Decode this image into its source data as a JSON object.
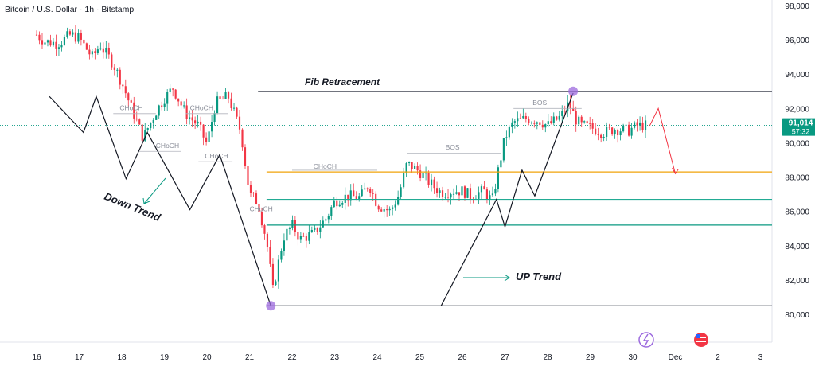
{
  "header": {
    "title": "Bitcoin / U.S. Dollar · 1h · Bitstamp"
  },
  "price_axis": {
    "ticks": [
      "98,000",
      "96,000",
      "94,000",
      "92,000",
      "90,000",
      "88,000",
      "86,000",
      "84,000",
      "82,000",
      "80,000"
    ],
    "last_price": "91,014",
    "countdown": "57:32",
    "last_price_color": "#089981"
  },
  "time_axis": {
    "ticks": [
      "16",
      "17",
      "18",
      "19",
      "20",
      "21",
      "22",
      "23",
      "24",
      "25",
      "26",
      "27",
      "28",
      "29",
      "30",
      "Dec",
      "2",
      "3"
    ]
  },
  "annotations": {
    "fib_label": "Fib Retracement",
    "down_label": "Down Trend",
    "up_label": "UP Trend",
    "choch": "CHoCH",
    "bos": "BOS"
  },
  "colors": {
    "up": "#089981",
    "down": "#f23645",
    "fib_gold": "#f0a30a",
    "fib_green": "#22ab94",
    "fib_teal": "#089981",
    "marker": "#9c6ade",
    "forecast": "#f23645"
  },
  "chart_data": {
    "type": "candlestick",
    "title": "Bitcoin / U.S. Dollar · 1h · Bitstamp",
    "x_range": [
      "Nov 16",
      "Dec 3"
    ],
    "ylim": [
      79000,
      98000
    ],
    "trend_zigzag": [
      {
        "date": "Nov 16.3",
        "price": 92700
      },
      {
        "date": "Nov 17.1",
        "price": 90600
      },
      {
        "date": "Nov 17.4",
        "price": 92700
      },
      {
        "date": "Nov 18.1",
        "price": 87900
      },
      {
        "date": "Nov 18.6",
        "price": 90600
      },
      {
        "date": "Nov 19.6",
        "price": 86100
      },
      {
        "date": "Nov 20.3",
        "price": 89300
      },
      {
        "date": "Nov 21.5",
        "price": 80500
      }
    ],
    "up_zigzag": [
      {
        "date": "Nov 25.5",
        "price": 80500
      },
      {
        "date": "Nov 26.8",
        "price": 86700
      },
      {
        "date": "Nov 27",
        "price": 85100
      },
      {
        "date": "Nov 27.4",
        "price": 88400
      },
      {
        "date": "Nov 27.7",
        "price": 86900
      },
      {
        "date": "Nov 28.6",
        "price": 92900
      }
    ],
    "fib_levels": [
      93000,
      88300,
      86700,
      85200,
      80500
    ],
    "marker_points": [
      {
        "date": "Nov 21.5",
        "price": 80500
      },
      {
        "date": "Nov 28.6",
        "price": 93000
      }
    ],
    "forecast_path": [
      {
        "date": "Nov 30.4",
        "price": 91000
      },
      {
        "date": "Nov 30.6",
        "price": 92000
      },
      {
        "date": "Dec 1",
        "price": 88200
      }
    ],
    "last_price": 91014
  }
}
